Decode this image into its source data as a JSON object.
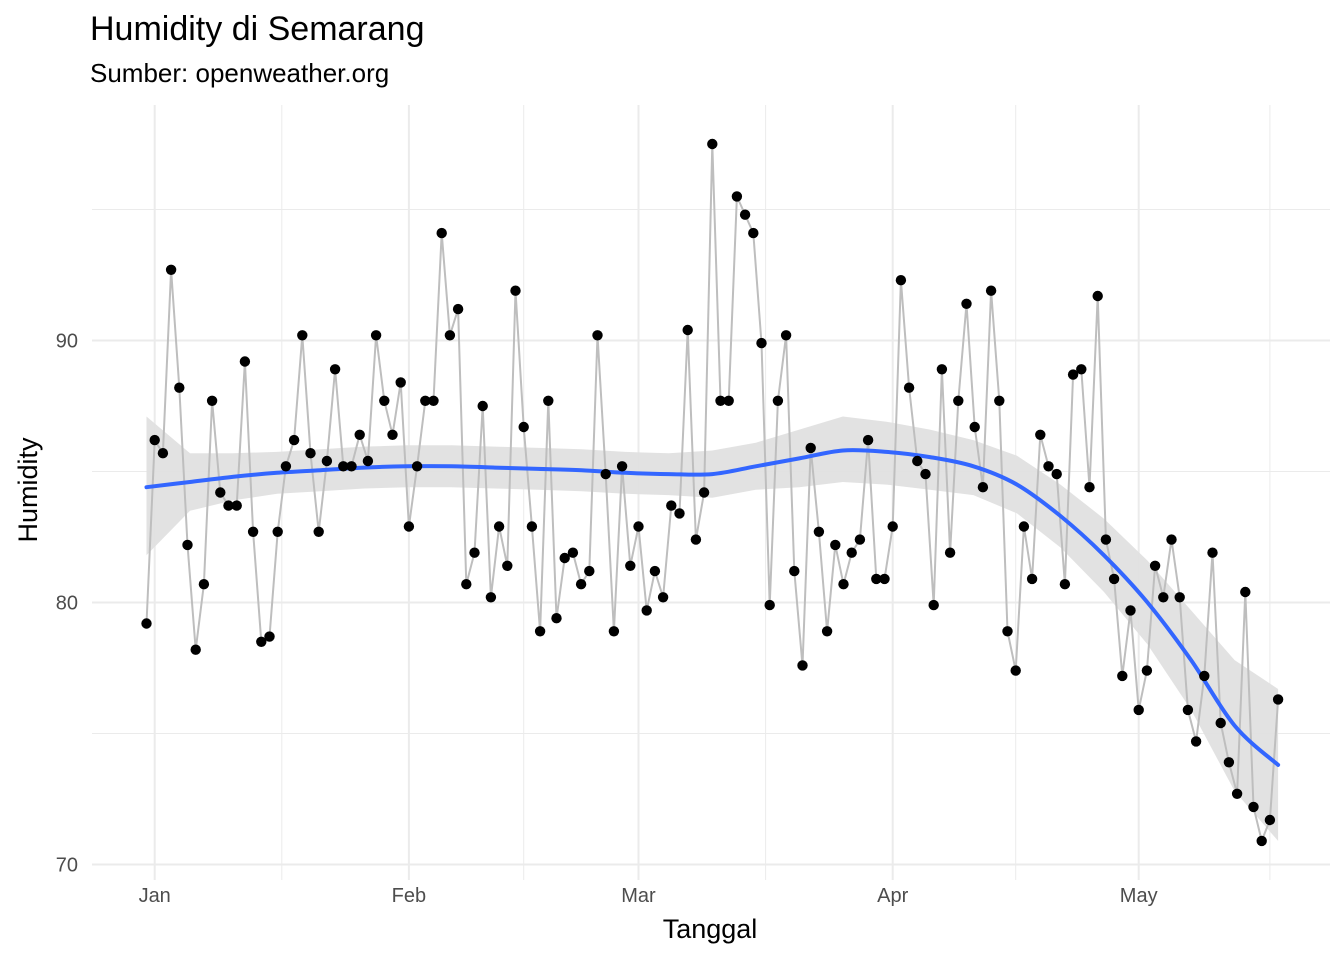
{
  "chart_data": {
    "type": "line",
    "title": "Humidity di Semarang",
    "subtitle": "Sumber: openweather.org",
    "xlabel": "Tanggal",
    "ylabel": "Humidity",
    "x_start": "Dec 31",
    "x_ticks": [
      "Jan",
      "Feb",
      "Mar",
      "Apr",
      "May"
    ],
    "y_ticks": [
      70,
      80,
      90
    ],
    "ylim": [
      70,
      97.5
    ],
    "grid": true,
    "series": [
      {
        "values": [
          79.2,
          86.2,
          85.7,
          92.7,
          88.2,
          82.2,
          78.2,
          80.7,
          87.7,
          84.2,
          83.7,
          83.7,
          89.2,
          82.7,
          78.5,
          78.7,
          82.7,
          85.2,
          86.2,
          90.2,
          85.7,
          82.7,
          85.4,
          88.9,
          85.2,
          85.2,
          86.4,
          85.4,
          90.2,
          87.7,
          86.4,
          88.4,
          82.9,
          85.2,
          87.7,
          87.7,
          94.1,
          90.2,
          91.2,
          80.7,
          81.9,
          87.5,
          80.2,
          82.9,
          81.4,
          91.9,
          86.7,
          82.9,
          78.9,
          87.7,
          79.4,
          81.7,
          81.9,
          80.7,
          81.2,
          90.2,
          84.9,
          78.9,
          85.2,
          81.4,
          82.9,
          79.7,
          81.2,
          80.2,
          83.7,
          83.4,
          90.4,
          82.4,
          84.2,
          97.5,
          87.7,
          87.7,
          95.5,
          94.8,
          94.1,
          89.9,
          79.9,
          87.7,
          90.2,
          81.2,
          77.6,
          85.9,
          82.7,
          78.9,
          82.2,
          80.7,
          81.9,
          82.4,
          86.2,
          80.9,
          80.9,
          82.9,
          92.3,
          88.2,
          85.4,
          84.9,
          79.9,
          88.9,
          81.9,
          87.7,
          91.4,
          86.7,
          84.4,
          91.9,
          87.7,
          78.9,
          77.4,
          82.9,
          80.9,
          86.4,
          85.2,
          84.9,
          80.7,
          88.7,
          88.9,
          84.4,
          91.7,
          82.4,
          80.9,
          77.2,
          79.7,
          75.9,
          77.4,
          81.4,
          80.2,
          82.4,
          80.2,
          75.9,
          74.7,
          77.2,
          81.9,
          75.4,
          73.9,
          72.7,
          80.4,
          72.2,
          70.9,
          71.7,
          76.3
        ]
      }
    ],
    "smooth": {
      "values": [
        84.4,
        84.6,
        84.8,
        84.95,
        85.05,
        85.15,
        85.2,
        85.2,
        85.15,
        85.1,
        85.05,
        84.95,
        84.9,
        84.9,
        85.2,
        85.5,
        85.8,
        85.75,
        85.55,
        85.2,
        84.5,
        83.3,
        81.8,
        80.0,
        77.8,
        75.3,
        73.8
      ],
      "ribbon_upper": [
        87.1,
        85.7,
        85.7,
        85.75,
        85.85,
        85.95,
        86.0,
        86.0,
        85.95,
        85.9,
        85.85,
        85.75,
        85.7,
        85.8,
        86.1,
        86.6,
        87.1,
        86.9,
        86.6,
        86.2,
        85.6,
        84.5,
        83.2,
        81.6,
        79.7,
        77.8,
        76.7
      ],
      "ribbon_lower": [
        81.8,
        83.5,
        83.9,
        84.15,
        84.25,
        84.35,
        84.4,
        84.4,
        84.35,
        84.3,
        84.25,
        84.15,
        84.1,
        84.0,
        84.3,
        84.4,
        84.6,
        84.5,
        84.3,
        84.1,
        83.4,
        82.1,
        80.4,
        78.4,
        75.9,
        72.8,
        70.9
      ]
    },
    "colors": {
      "points": "#000000",
      "line": "#bebebe",
      "smooth": "#3366ff",
      "ribbon": "#e0e0e0",
      "grid": "#ebebeb"
    }
  }
}
